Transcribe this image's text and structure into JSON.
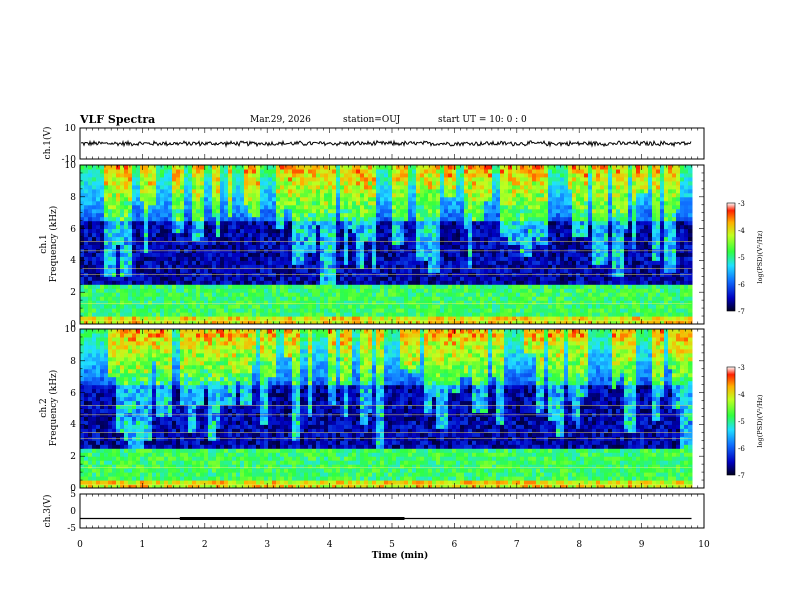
{
  "header": {
    "title": "VLF Spectra",
    "date": "Mar.29, 2026",
    "station": "station=OUJ",
    "start_ut": "start  UT =   10: 0  : 0"
  },
  "colors": {
    "spectrogram_low": "#000030",
    "spectrogram_mid": "#1060ff",
    "spectrogram_cyan": "#20d0e0",
    "spectrogram_green": "#30e050",
    "spectrogram_high": "#ff0000",
    "trace": "#000000"
  },
  "chart_data": [
    {
      "type": "line",
      "name": "ch1-waveform",
      "ylabel": "ch.1(V)",
      "ylim": [
        -10,
        10
      ],
      "yticks": [
        "10",
        "-10"
      ],
      "xlim": [
        0,
        10
      ],
      "series": [
        {
          "name": "ch.1",
          "mean": 0,
          "amplitude_approx": 1.5,
          "x_end": 9.8
        }
      ]
    },
    {
      "type": "heatmap",
      "name": "ch1-spectrogram",
      "ylabel": "ch.1\nFrequency  (kHz)",
      "ylabel_line1": "ch.1",
      "ylabel_line2": "Frequency  (kHz)",
      "ylim": [
        0,
        10
      ],
      "yticks": [
        "0",
        "2",
        "4",
        "6",
        "8",
        "10"
      ],
      "xlim": [
        0,
        10
      ],
      "data_extent_min": 9.8,
      "colorbar": {
        "label": "log(PSD)(V²/Hz)",
        "range": [
          -7,
          -3
        ],
        "ticks": [
          "-3",
          "-4",
          "-5",
          "-6",
          "-7"
        ]
      }
    },
    {
      "type": "heatmap",
      "name": "ch2-spectrogram",
      "ylabel": "ch.2\nFrequency  (kHz)",
      "ylabel_line1": "ch.2",
      "ylabel_line2": "Frequency  (kHz)",
      "ylim": [
        0,
        10
      ],
      "yticks": [
        "0",
        "2",
        "4",
        "6",
        "8",
        "10"
      ],
      "xlim": [
        0,
        10
      ],
      "data_extent_min": 9.8,
      "colorbar": {
        "label": "log(PSD)(V²/Hz)",
        "range": [
          -7,
          -3
        ],
        "ticks": [
          "-3",
          "-4",
          "-5",
          "-6",
          "-7"
        ]
      }
    },
    {
      "type": "line",
      "name": "ch3-signal",
      "ylabel": "ch.3(V)",
      "ylim": [
        -5,
        5
      ],
      "yticks": [
        "5",
        "0",
        "-5"
      ],
      "xlim": [
        0,
        10
      ],
      "series": [
        {
          "name": "ch.3 baseline",
          "x": [
            0,
            9.8
          ],
          "y": [
            -2.2,
            -2.2
          ]
        },
        {
          "name": "ch.3 pulse",
          "x": [
            1.6,
            5.2
          ],
          "y": [
            -2.2,
            -2.2
          ]
        }
      ]
    }
  ],
  "xaxis": {
    "label": "Time  (min)",
    "ticks": [
      "0",
      "1",
      "2",
      "3",
      "4",
      "5",
      "6",
      "7",
      "8",
      "9",
      "10"
    ]
  }
}
